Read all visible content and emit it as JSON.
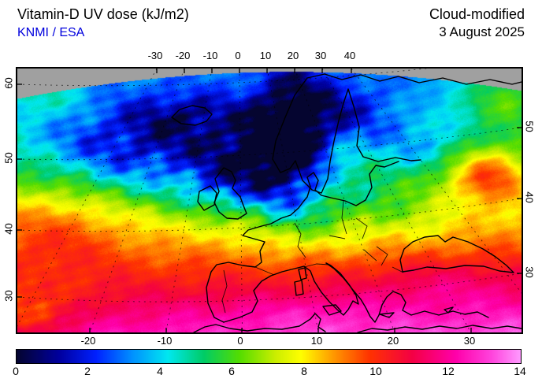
{
  "header": {
    "title": "Vitamin-D UV dose (kJ/m2)",
    "source": "KNMI / ESA",
    "mode": "Cloud-modified",
    "date": "3 August 2025"
  },
  "axes": {
    "top": [
      "-30",
      "-20",
      "-10",
      "0",
      "10",
      "20",
      "30",
      "40"
    ],
    "bottom": [
      "-20",
      "-10",
      "0",
      "10",
      "20",
      "30"
    ],
    "left": [
      "60",
      "50",
      "40",
      "30"
    ],
    "right": [
      "50",
      "40",
      "30"
    ]
  },
  "colorbar": {
    "unit": "kJ/m2",
    "min": 0,
    "max": 14,
    "ticks": [
      "0",
      "2",
      "4",
      "6",
      "8",
      "10",
      "12",
      "14"
    ],
    "stops": [
      {
        "v": 0,
        "c": "#050530"
      },
      {
        "v": 1.2,
        "c": "#0000a0"
      },
      {
        "v": 2.2,
        "c": "#0020ff"
      },
      {
        "v": 3.2,
        "c": "#0090ff"
      },
      {
        "v": 4.2,
        "c": "#00e8f0"
      },
      {
        "v": 5.2,
        "c": "#00cc66"
      },
      {
        "v": 6.2,
        "c": "#55dd00"
      },
      {
        "v": 7.2,
        "c": "#ccee00"
      },
      {
        "v": 7.9,
        "c": "#ffff00"
      },
      {
        "v": 8.8,
        "c": "#ff9900"
      },
      {
        "v": 9.8,
        "c": "#ff3300"
      },
      {
        "v": 11,
        "c": "#f40045"
      },
      {
        "v": 12.2,
        "c": "#ff00aa"
      },
      {
        "v": 13.2,
        "c": "#ff44dd"
      },
      {
        "v": 14,
        "c": "#ff99ff"
      }
    ]
  },
  "colors": {
    "source_text": "#0000dd",
    "coastline": "#000000",
    "nodata_gray": "#a0a0a0"
  }
}
